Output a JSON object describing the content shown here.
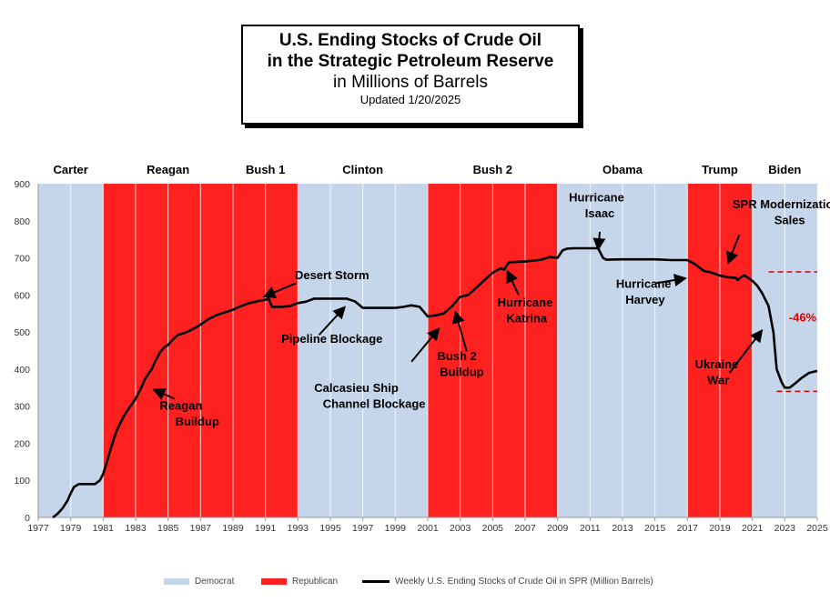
{
  "title": {
    "line1": "U.S. Ending Stocks of Crude Oil",
    "line2": "in the Strategic Petroleum Reserve",
    "line3": "in Millions of Barrels",
    "line4": "Updated  1/20/2025"
  },
  "colors": {
    "democrat": "#c5d6ea",
    "republican": "#ff2020",
    "line": "#000000",
    "guide": "#e00000"
  },
  "chart_data": {
    "type": "line",
    "xlim": [
      1977,
      2025
    ],
    "ylim": [
      0,
      900
    ],
    "x_ticks": [
      1977,
      1979,
      1981,
      1983,
      1985,
      1987,
      1989,
      1991,
      1993,
      1995,
      1997,
      1999,
      2001,
      2003,
      2005,
      2007,
      2009,
      2011,
      2013,
      2015,
      2017,
      2019,
      2021,
      2023,
      2025
    ],
    "y_ticks": [
      0,
      100,
      200,
      300,
      400,
      500,
      600,
      700,
      800,
      900
    ],
    "grid": false,
    "legend_position": "bottom",
    "presidencies": [
      {
        "name": "Carter",
        "start": 1977.0,
        "end": 1981.0,
        "party": "Democrat"
      },
      {
        "name": "Reagan",
        "start": 1981.0,
        "end": 1989.0,
        "party": "Republican"
      },
      {
        "name": "Bush 1",
        "start": 1989.0,
        "end": 1993.0,
        "party": "Republican"
      },
      {
        "name": "Clinton",
        "start": 1993.0,
        "end": 2001.0,
        "party": "Democrat"
      },
      {
        "name": "Bush 2",
        "start": 2001.0,
        "end": 2009.0,
        "party": "Republican"
      },
      {
        "name": "Obama",
        "start": 2009.0,
        "end": 2017.0,
        "party": "Democrat"
      },
      {
        "name": "Trump",
        "start": 2017.0,
        "end": 2021.0,
        "party": "Republican"
      },
      {
        "name": "Biden",
        "start": 2021.0,
        "end": 2025.0,
        "party": "Democrat"
      }
    ],
    "series": [
      {
        "name": "Weekly U.S. Ending Stocks of Crude Oil in SPR  (Million Barrels)",
        "x": [
          1977.9,
          1978.2,
          1978.5,
          1978.8,
          1979.0,
          1979.2,
          1979.5,
          1980.0,
          1980.5,
          1980.8,
          1981.0,
          1981.2,
          1981.5,
          1981.8,
          1982.0,
          1982.3,
          1982.6,
          1983.0,
          1983.3,
          1983.6,
          1984.0,
          1984.2,
          1984.5,
          1984.8,
          1985.0,
          1985.3,
          1985.6,
          1986.0,
          1986.5,
          1987.0,
          1987.5,
          1988.0,
          1988.5,
          1989.0,
          1989.5,
          1990.0,
          1990.5,
          1991.0,
          1991.2,
          1991.4,
          1991.6,
          1992.0,
          1992.5,
          1993.0,
          1993.5,
          1994.0,
          1995.0,
          1996.0,
          1996.5,
          1997.0,
          1998.0,
          1999.0,
          1999.5,
          2000.0,
          2000.5,
          2001.0,
          2001.5,
          2002.0,
          2002.5,
          2003.0,
          2003.5,
          2004.0,
          2004.5,
          2005.0,
          2005.5,
          2005.7,
          2006.0,
          2007.0,
          2008.0,
          2008.5,
          2009.0,
          2009.3,
          2009.6,
          2010.0,
          2011.0,
          2011.5,
          2011.8,
          2012.0,
          2013.0,
          2014.0,
          2015.0,
          2016.0,
          2017.0,
          2017.5,
          2018.0,
          2018.5,
          2019.0,
          2019.5,
          2019.7,
          2020.0,
          2020.1,
          2020.3,
          2020.5,
          2021.0,
          2021.3,
          2021.6,
          2022.0,
          2022.3,
          2022.5,
          2022.8,
          2023.0,
          2023.3,
          2023.6,
          2024.0,
          2024.5,
          2025.0
        ],
        "y": [
          0,
          10,
          25,
          45,
          65,
          82,
          90,
          90,
          90,
          100,
          117,
          145,
          190,
          230,
          250,
          275,
          295,
          320,
          345,
          375,
          400,
          420,
          445,
          460,
          465,
          480,
          492,
          497,
          507,
          520,
          535,
          546,
          553,
          560,
          570,
          578,
          583,
          587,
          590,
          568,
          568,
          568,
          570,
          578,
          582,
          590,
          590,
          590,
          583,
          565,
          565,
          565,
          568,
          572,
          568,
          542,
          545,
          550,
          570,
          595,
          600,
          620,
          640,
          660,
          672,
          668,
          688,
          690,
          695,
          702,
          700,
          720,
          725,
          726,
          726,
          726,
          700,
          695,
          696,
          696,
          696,
          694,
          694,
          682,
          665,
          660,
          652,
          648,
          647,
          646,
          640,
          648,
          653,
          638,
          625,
          605,
          570,
          500,
          400,
          365,
          350,
          350,
          360,
          375,
          390,
          395
        ]
      }
    ],
    "annotations": [
      {
        "text": "Desert Storm",
        "x": 1995.1,
        "y": 642
      },
      {
        "text": "Pipeline Blockage",
        "x": 1995.1,
        "y": 471
      },
      {
        "text": "Calcasieu Ship",
        "x": 1996.6,
        "y": 338
      },
      {
        "text": "Channel Blockage",
        "x": 1997.7,
        "y": 295
      },
      {
        "text": "Reagan",
        "x": 1985.8,
        "y": 291
      },
      {
        "text": "Buildup",
        "x": 1986.8,
        "y": 248
      },
      {
        "text": "Bush 2",
        "x": 2002.8,
        "y": 424
      },
      {
        "text": "Buildup",
        "x": 2003.1,
        "y": 381
      },
      {
        "text": "Hurricane",
        "x": 2007.0,
        "y": 569
      },
      {
        "text": "Katrina",
        "x": 2007.1,
        "y": 526
      },
      {
        "text": "Hurricane",
        "x": 2011.4,
        "y": 852
      },
      {
        "text": "Isaac",
        "x": 2011.6,
        "y": 809
      },
      {
        "text": "Hurricane",
        "x": 2014.3,
        "y": 619
      },
      {
        "text": "Harvey",
        "x": 2014.4,
        "y": 576
      },
      {
        "text": "SPR Modernization",
        "x": 2023.1,
        "y": 834
      },
      {
        "text": "Sales",
        "x": 2023.3,
        "y": 791
      },
      {
        "text": "-46%",
        "x": 2024.1,
        "y": 528
      },
      {
        "text": "Ukraine",
        "x": 2018.8,
        "y": 402
      },
      {
        "text": "War",
        "x": 2018.9,
        "y": 359
      }
    ],
    "reference_lines": [
      {
        "y": 662,
        "x_start": 2022.0,
        "x_end": 2025.0
      },
      {
        "y": 340,
        "x_start": 2022.5,
        "x_end": 2025.0
      }
    ]
  },
  "legend": [
    {
      "label": "Democrat",
      "kind": "patch",
      "color": "#c5d6ea"
    },
    {
      "label": "Republican",
      "kind": "patch",
      "color": "#ff2020"
    },
    {
      "label": "Weekly U.S. Ending Stocks of Crude Oil in SPR  (Million Barrels)",
      "kind": "line",
      "color": "#000000"
    }
  ]
}
